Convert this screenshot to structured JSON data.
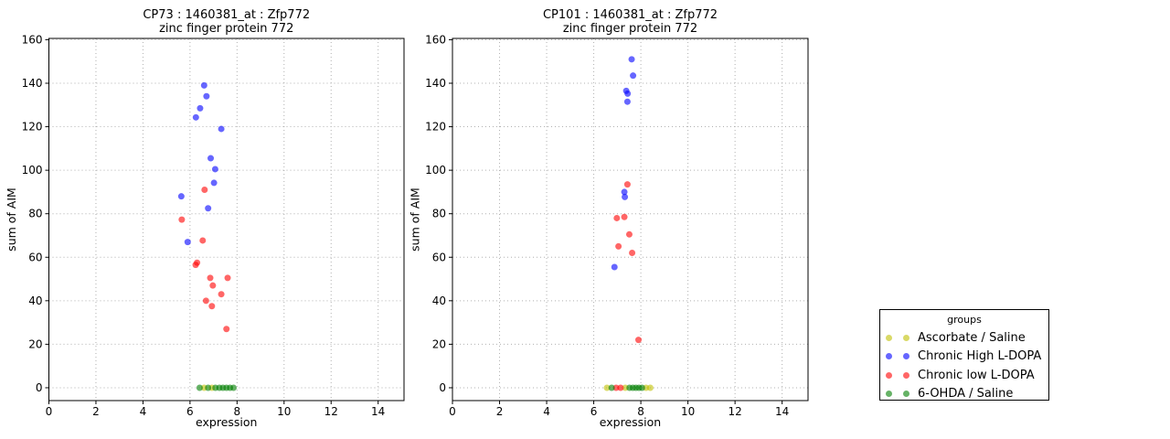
{
  "figure": {
    "background": "#ffffff"
  },
  "legend": {
    "title": "groups",
    "marker_opacity": 0.6,
    "entries": [
      {
        "label": "Ascorbate / Saline",
        "color": "#bfbf00"
      },
      {
        "label": "Chronic High L-DOPA",
        "color": "#0000ff"
      },
      {
        "label": "Chronic low L-DOPA",
        "color": "#ff0000"
      },
      {
        "label": "6-OHDA / Saline",
        "color": "#007f00"
      }
    ]
  },
  "chart_data": [
    {
      "type": "scatter",
      "title_line1": "CP73 : 1460381_at : Zfp772",
      "title_line2": "zinc finger protein 772",
      "xlabel": "expression",
      "ylabel": "sum of AIM",
      "xlim": [
        0,
        15.1
      ],
      "ylim": [
        -5.9,
        160.6
      ],
      "xticks": [
        0,
        2,
        4,
        6,
        8,
        10,
        12,
        14
      ],
      "yticks": [
        0,
        20,
        40,
        60,
        80,
        100,
        120,
        140,
        160
      ],
      "grid": "dotted",
      "series": [
        {
          "name": "Ascorbate / Saline",
          "color": "#bfbf00",
          "points": [
            [
              6.6,
              0
            ],
            [
              6.93,
              0
            ]
          ]
        },
        {
          "name": "Chronic High L-DOPA",
          "color": "#0000ff",
          "points": [
            [
              6.6,
              139
            ],
            [
              6.7,
              134
            ],
            [
              6.43,
              128.5
            ],
            [
              6.25,
              124.3
            ],
            [
              7.33,
              119
            ],
            [
              6.88,
              105.5
            ],
            [
              7.07,
              100.5
            ],
            [
              7.02,
              94.2
            ],
            [
              5.63,
              88
            ],
            [
              6.77,
              82.5
            ],
            [
              5.9,
              67
            ]
          ]
        },
        {
          "name": "Chronic low L-DOPA",
          "color": "#ff0000",
          "points": [
            [
              6.62,
              91
            ],
            [
              5.65,
              77.3
            ],
            [
              6.54,
              67.7
            ],
            [
              6.3,
              57.5
            ],
            [
              6.24,
              56.5
            ],
            [
              6.86,
              50.5
            ],
            [
              7.6,
              50.5
            ],
            [
              6.97,
              47
            ],
            [
              7.33,
              43
            ],
            [
              6.68,
              40
            ],
            [
              6.93,
              37.5
            ],
            [
              7.55,
              27
            ]
          ]
        },
        {
          "name": "6-OHDA / Saline",
          "color": "#007f00",
          "points": [
            [
              6.41,
              0
            ],
            [
              6.77,
              0
            ],
            [
              7.08,
              0
            ],
            [
              7.25,
              0
            ],
            [
              7.4,
              0
            ],
            [
              7.55,
              0
            ],
            [
              7.7,
              0
            ],
            [
              7.85,
              0
            ]
          ]
        }
      ]
    },
    {
      "type": "scatter",
      "title_line1": "CP101 : 1460381_at : Zfp772",
      "title_line2": "zinc finger protein 772",
      "xlabel": "expression",
      "ylabel": "sum of AIM",
      "xlim": [
        0,
        15.1
      ],
      "ylim": [
        -5.9,
        160.6
      ],
      "xticks": [
        0,
        2,
        4,
        6,
        8,
        10,
        12,
        14
      ],
      "yticks": [
        0,
        20,
        40,
        60,
        80,
        100,
        120,
        140,
        160
      ],
      "grid": "dotted",
      "series": [
        {
          "name": "Ascorbate / Saline",
          "color": "#bfbf00",
          "points": [
            [
              6.56,
              0
            ],
            [
              7.34,
              0
            ],
            [
              8.22,
              0
            ],
            [
              8.4,
              0
            ]
          ]
        },
        {
          "name": "Chronic High L-DOPA",
          "color": "#0000ff",
          "points": [
            [
              7.61,
              151
            ],
            [
              7.67,
              143.5
            ],
            [
              7.38,
              136.5
            ],
            [
              7.44,
              135.2
            ],
            [
              7.43,
              131.5
            ],
            [
              7.3,
              90
            ],
            [
              7.32,
              87.7
            ],
            [
              6.88,
              55.5
            ]
          ]
        },
        {
          "name": "Chronic low L-DOPA",
          "color": "#ff0000",
          "points": [
            [
              7.43,
              93.5
            ],
            [
              6.98,
              78
            ],
            [
              7.3,
              78.5
            ],
            [
              7.51,
              70.5
            ],
            [
              7.05,
              65
            ],
            [
              7.63,
              62
            ],
            [
              7.9,
              22
            ],
            [
              6.95,
              0
            ],
            [
              7.14,
              0
            ]
          ]
        },
        {
          "name": "6-OHDA / Saline",
          "color": "#007f00",
          "points": [
            [
              6.76,
              0
            ],
            [
              7.52,
              0
            ],
            [
              7.66,
              0
            ],
            [
              7.79,
              0
            ],
            [
              7.92,
              0
            ],
            [
              8.05,
              0
            ]
          ]
        }
      ]
    }
  ]
}
